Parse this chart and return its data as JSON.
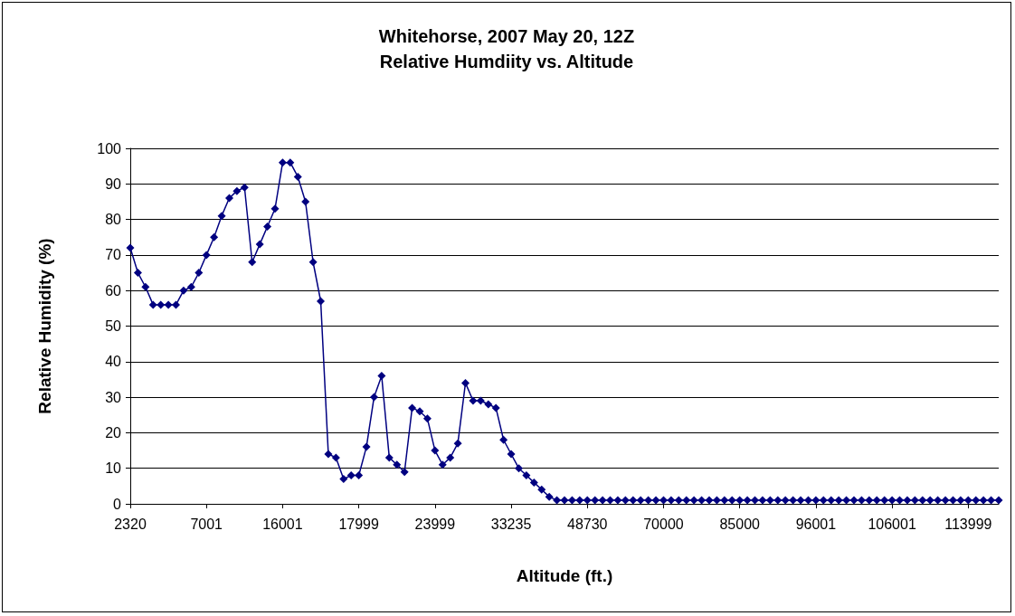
{
  "chart_data": {
    "type": "line",
    "title": "Whitehorse, 2007 May 20, 12Z",
    "subtitle": "Relative Humdiity vs. Altitude",
    "xlabel": "Altitude (ft.)",
    "ylabel": "Relative Humidity (%)",
    "categories": [
      "2320",
      null,
      null,
      null,
      null,
      null,
      null,
      null,
      null,
      null,
      "7001",
      null,
      null,
      null,
      null,
      null,
      null,
      null,
      null,
      null,
      "16001",
      null,
      null,
      null,
      null,
      null,
      null,
      null,
      null,
      null,
      "17999",
      null,
      null,
      null,
      null,
      null,
      null,
      null,
      null,
      null,
      "23999",
      null,
      null,
      null,
      null,
      null,
      null,
      null,
      null,
      null,
      "33235",
      null,
      null,
      null,
      null,
      null,
      null,
      null,
      null,
      null,
      "48730",
      null,
      null,
      null,
      null,
      null,
      null,
      null,
      null,
      null,
      "70000",
      null,
      null,
      null,
      null,
      null,
      null,
      null,
      null,
      null,
      "85000",
      null,
      null,
      null,
      null,
      null,
      null,
      null,
      null,
      null,
      "96001",
      null,
      null,
      null,
      null,
      null,
      null,
      null,
      null,
      null,
      "106001",
      null,
      null,
      null,
      null,
      null,
      null,
      null,
      null,
      null,
      "113999",
      null,
      null,
      null,
      null
    ],
    "series": [
      {
        "color": "#000080",
        "values": [
          72,
          65,
          61,
          56,
          56,
          56,
          56,
          60,
          61,
          65,
          70,
          75,
          81,
          86,
          88,
          89,
          68,
          73,
          78,
          83,
          96,
          96,
          92,
          85,
          68,
          57,
          14,
          13,
          7,
          8,
          8,
          16,
          30,
          36,
          13,
          11,
          9,
          27,
          26,
          24,
          15,
          11,
          13,
          17,
          34,
          29,
          29,
          28,
          27,
          18,
          14,
          10,
          8,
          6,
          4,
          2,
          1,
          1,
          1,
          1,
          1,
          1,
          1,
          1,
          1,
          1,
          1,
          1,
          1,
          1,
          1,
          1,
          1,
          1,
          1,
          1,
          1,
          1,
          1,
          1,
          1,
          1,
          1,
          1,
          1,
          1,
          1,
          1,
          1,
          1,
          1,
          1,
          1,
          1,
          1,
          1,
          1,
          1,
          1,
          1,
          1,
          1,
          1,
          1,
          1,
          1,
          1,
          1,
          1,
          1,
          1,
          1,
          1,
          1,
          1
        ]
      }
    ],
    "ylim": [
      0,
      100
    ],
    "yticks": [
      0,
      10,
      20,
      30,
      40,
      50,
      60,
      70,
      80,
      90,
      100
    ],
    "grid": "y",
    "marker": "diamond",
    "line_style": "solid"
  }
}
